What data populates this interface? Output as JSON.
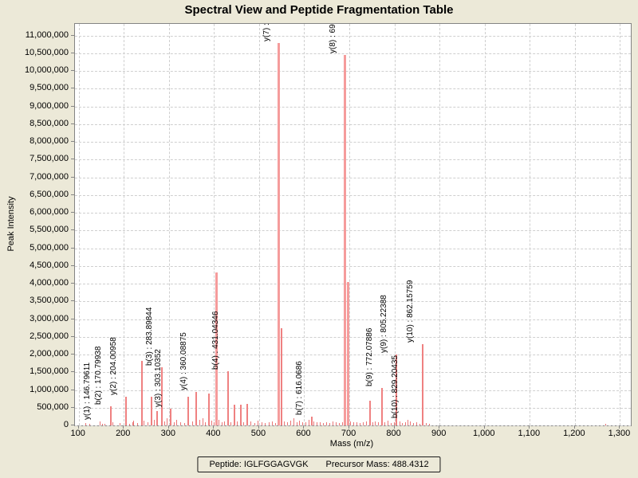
{
  "title": "Spectral View and Peptide Fragmentation Table",
  "footer": {
    "peptide": "Peptide: IGLFGGAGVGK",
    "precursor_mass": "Precursor Mass: 488.4312"
  },
  "chart_data": {
    "type": "bar",
    "title": "Spectral View and Peptide Fragmentation Table",
    "xlabel": "Mass (m/z)",
    "ylabel": "Peak Intensity",
    "xlim": [
      91.7,
      1324
    ],
    "ylim": [
      0,
      11330000
    ],
    "x_ticks": [
      100,
      200,
      300,
      400,
      500,
      600,
      700,
      800,
      900,
      1000,
      1100,
      1200,
      1300
    ],
    "y_tick_step": 500000,
    "y_tick_max": 11000000,
    "grid": "dashed",
    "legend": "none",
    "colors": {
      "major": "#f59c9c",
      "mid": "#ef8181",
      "minor": "#ea7676"
    },
    "peaks": [
      {
        "mz": 115,
        "i": 60000
      },
      {
        "mz": 124,
        "i": 35000
      },
      {
        "mz": 147,
        "i": 120000,
        "label": "y(1) : 146.79611"
      },
      {
        "mz": 152,
        "i": 50000
      },
      {
        "mz": 158,
        "i": 35000
      },
      {
        "mz": 171,
        "i": 550000,
        "label": "b(2) : 170.79938"
      },
      {
        "mz": 175,
        "i": 90000
      },
      {
        "mz": 192,
        "i": 60000
      },
      {
        "mz": 204,
        "i": 800000,
        "label": "y(2) : 204.00958"
      },
      {
        "mz": 212,
        "i": 40000
      },
      {
        "mz": 219,
        "i": 100000
      },
      {
        "mz": 222,
        "i": 140000
      },
      {
        "mz": 231,
        "i": 60000
      },
      {
        "mz": 240,
        "i": 1830000
      },
      {
        "mz": 245,
        "i": 130000
      },
      {
        "mz": 253,
        "i": 90000
      },
      {
        "mz": 261,
        "i": 820000
      },
      {
        "mz": 268,
        "i": 150000
      },
      {
        "mz": 274,
        "i": 400000
      },
      {
        "mz": 284,
        "i": 1650000,
        "label": "b(3) : 283.89844"
      },
      {
        "mz": 290,
        "i": 120000
      },
      {
        "mz": 296,
        "i": 200000
      },
      {
        "mz": 303,
        "i": 480000,
        "label": "y(3) : 303.10352"
      },
      {
        "mz": 311,
        "i": 90000
      },
      {
        "mz": 318,
        "i": 160000
      },
      {
        "mz": 326,
        "i": 100000
      },
      {
        "mz": 334,
        "i": 70000
      },
      {
        "mz": 343,
        "i": 820000
      },
      {
        "mz": 352,
        "i": 120000
      },
      {
        "mz": 360,
        "i": 950000,
        "label": "y(4) : 360.08875"
      },
      {
        "mz": 368,
        "i": 150000
      },
      {
        "mz": 375,
        "i": 200000
      },
      {
        "mz": 381,
        "i": 90000
      },
      {
        "mz": 388,
        "i": 900000
      },
      {
        "mz": 395,
        "i": 130000
      },
      {
        "mz": 401,
        "i": 80000
      },
      {
        "mz": 405,
        "i": 4320000
      },
      {
        "mz": 410,
        "i": 160000
      },
      {
        "mz": 418,
        "i": 90000
      },
      {
        "mz": 424,
        "i": 120000
      },
      {
        "mz": 431,
        "i": 1530000,
        "label": "b(4) : 431.04346"
      },
      {
        "mz": 438,
        "i": 100000
      },
      {
        "mz": 445,
        "i": 580000
      },
      {
        "mz": 452,
        "i": 120000
      },
      {
        "mz": 460,
        "i": 590000
      },
      {
        "mz": 466,
        "i": 90000
      },
      {
        "mz": 473,
        "i": 600000
      },
      {
        "mz": 481,
        "i": 110000
      },
      {
        "mz": 490,
        "i": 70000
      },
      {
        "mz": 498,
        "i": 130000
      },
      {
        "mz": 506,
        "i": 80000
      },
      {
        "mz": 514,
        "i": 60000
      },
      {
        "mz": 522,
        "i": 90000
      },
      {
        "mz": 530,
        "i": 110000
      },
      {
        "mz": 537,
        "i": 70000
      },
      {
        "mz": 544,
        "i": 10800000,
        "label": "y(7) :"
      },
      {
        "mz": 549,
        "i": 2740000
      },
      {
        "mz": 556,
        "i": 120000
      },
      {
        "mz": 563,
        "i": 80000
      },
      {
        "mz": 570,
        "i": 130000
      },
      {
        "mz": 577,
        "i": 200000
      },
      {
        "mz": 584,
        "i": 100000
      },
      {
        "mz": 590,
        "i": 140000
      },
      {
        "mz": 597,
        "i": 80000
      },
      {
        "mz": 604,
        "i": 100000
      },
      {
        "mz": 610,
        "i": 150000
      },
      {
        "mz": 616,
        "i": 250000,
        "label": "b(7) : 616.0686"
      },
      {
        "mz": 622,
        "i": 120000
      },
      {
        "mz": 629,
        "i": 80000
      },
      {
        "mz": 636,
        "i": 100000
      },
      {
        "mz": 643,
        "i": 60000
      },
      {
        "mz": 650,
        "i": 90000
      },
      {
        "mz": 657,
        "i": 70000
      },
      {
        "mz": 664,
        "i": 110000
      },
      {
        "mz": 670,
        "i": 80000
      },
      {
        "mz": 677,
        "i": 60000
      },
      {
        "mz": 684,
        "i": 100000
      },
      {
        "mz": 691,
        "i": 10450000,
        "label": "y(8) : 69"
      },
      {
        "mz": 697,
        "i": 4050000
      },
      {
        "mz": 703,
        "i": 120000
      },
      {
        "mz": 710,
        "i": 80000
      },
      {
        "mz": 717,
        "i": 100000
      },
      {
        "mz": 724,
        "i": 70000
      },
      {
        "mz": 731,
        "i": 90000
      },
      {
        "mz": 738,
        "i": 110000
      },
      {
        "mz": 745,
        "i": 700000
      },
      {
        "mz": 752,
        "i": 90000
      },
      {
        "mz": 758,
        "i": 120000
      },
      {
        "mz": 765,
        "i": 80000
      },
      {
        "mz": 772,
        "i": 1060000,
        "label": "b(9) : 772.07886"
      },
      {
        "mz": 778,
        "i": 100000
      },
      {
        "mz": 785,
        "i": 130000
      },
      {
        "mz": 792,
        "i": 70000
      },
      {
        "mz": 799,
        "i": 90000
      },
      {
        "mz": 805,
        "i": 2000000,
        "label": "y(9) : 805.22388"
      },
      {
        "mz": 812,
        "i": 110000
      },
      {
        "mz": 818,
        "i": 70000
      },
      {
        "mz": 824,
        "i": 90000
      },
      {
        "mz": 829,
        "i": 150000,
        "label": "b(10) : 829.20435"
      },
      {
        "mz": 836,
        "i": 120000
      },
      {
        "mz": 843,
        "i": 60000
      },
      {
        "mz": 850,
        "i": 80000
      },
      {
        "mz": 856,
        "i": 50000
      },
      {
        "mz": 862,
        "i": 2300000,
        "label": "y(10) : 862.15759"
      },
      {
        "mz": 870,
        "i": 60000
      },
      {
        "mz": 878,
        "i": 40000
      },
      {
        "mz": 1269,
        "i": 50000
      }
    ]
  }
}
